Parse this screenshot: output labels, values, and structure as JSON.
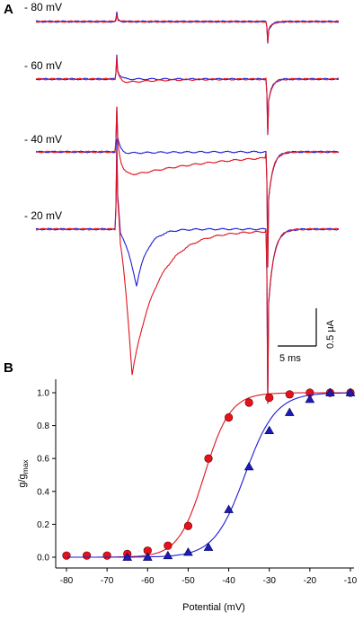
{
  "panels": {
    "a": "A",
    "b": "B"
  },
  "colors": {
    "red": "#e0141e",
    "blue": "#1f1fd6",
    "red_marker": "#e8101a",
    "blue_marker": "#1c1cb8"
  },
  "scale_bar": {
    "time": "5 ms",
    "current": "0.5 μA"
  },
  "chart_data": [
    {
      "type": "line",
      "panel": "A",
      "sweeps": [
        {
          "label": "- 80 mV"
        },
        {
          "label": "- 60 mV"
        },
        {
          "label": "- 40 mV"
        },
        {
          "label": "- 20 mV"
        }
      ],
      "scale": {
        "time": "5 ms",
        "current": "0.5 μA"
      }
    },
    {
      "type": "scatter",
      "panel": "B",
      "xlabel": "Potential (mV)",
      "ylabel": "g/g",
      "ylabel_sub": "max",
      "xlim": [
        -80,
        -10
      ],
      "ylim": [
        0,
        1.0
      ],
      "x_ticks": [
        -80,
        -70,
        -60,
        -50,
        -40,
        -30,
        -20,
        -10
      ],
      "y_ticks": [
        "0.0",
        "0.2",
        "0.4",
        "0.6",
        "0.8",
        "1.0"
      ],
      "series": [
        {
          "color": "red",
          "marker": "circle",
          "x": [
            -80,
            -75,
            -70,
            -65,
            -60,
            -55,
            -50,
            -45,
            -40,
            -35,
            -30,
            -25,
            -20,
            -15,
            -10
          ],
          "y": [
            0.01,
            0.01,
            0.01,
            0.02,
            0.04,
            0.07,
            0.19,
            0.6,
            0.85,
            0.94,
            0.97,
            0.99,
            1.0,
            1.0,
            1.0
          ],
          "fit": {
            "v_half": -46,
            "slope": 3.2
          }
        },
        {
          "color": "blue",
          "marker": "triangle",
          "x": [
            -65,
            -60,
            -55,
            -50,
            -45,
            -40,
            -35,
            -30,
            -25,
            -20,
            -15,
            -10
          ],
          "y": [
            0.0,
            0.0,
            0.01,
            0.03,
            0.06,
            0.29,
            0.55,
            0.77,
            0.88,
            0.96,
            1.0,
            1.0
          ],
          "fit": {
            "v_half": -36,
            "slope": 3.8
          }
        }
      ]
    }
  ]
}
